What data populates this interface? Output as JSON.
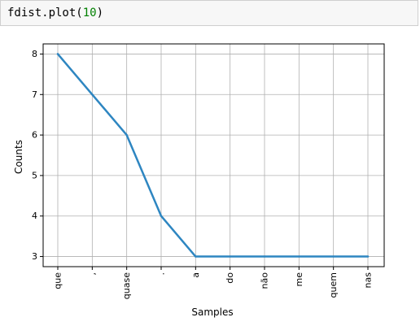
{
  "cell": {
    "code_fn": "fdist.plot(",
    "code_arg": "10",
    "code_end": ")"
  },
  "chart_data": {
    "type": "line",
    "categories": [
      "que",
      ",",
      "quase",
      ".",
      "a",
      "do",
      "não",
      "me",
      "quem",
      "nas"
    ],
    "values": [
      8,
      7,
      6,
      4,
      3,
      3,
      3,
      3,
      3,
      3
    ],
    "title": "",
    "xlabel": "Samples",
    "ylabel": "Counts",
    "ylim": [
      2.75,
      8.25
    ],
    "yticks": [
      3,
      4,
      5,
      6,
      7,
      8
    ],
    "grid": true,
    "line_color": "#2e86c1"
  }
}
